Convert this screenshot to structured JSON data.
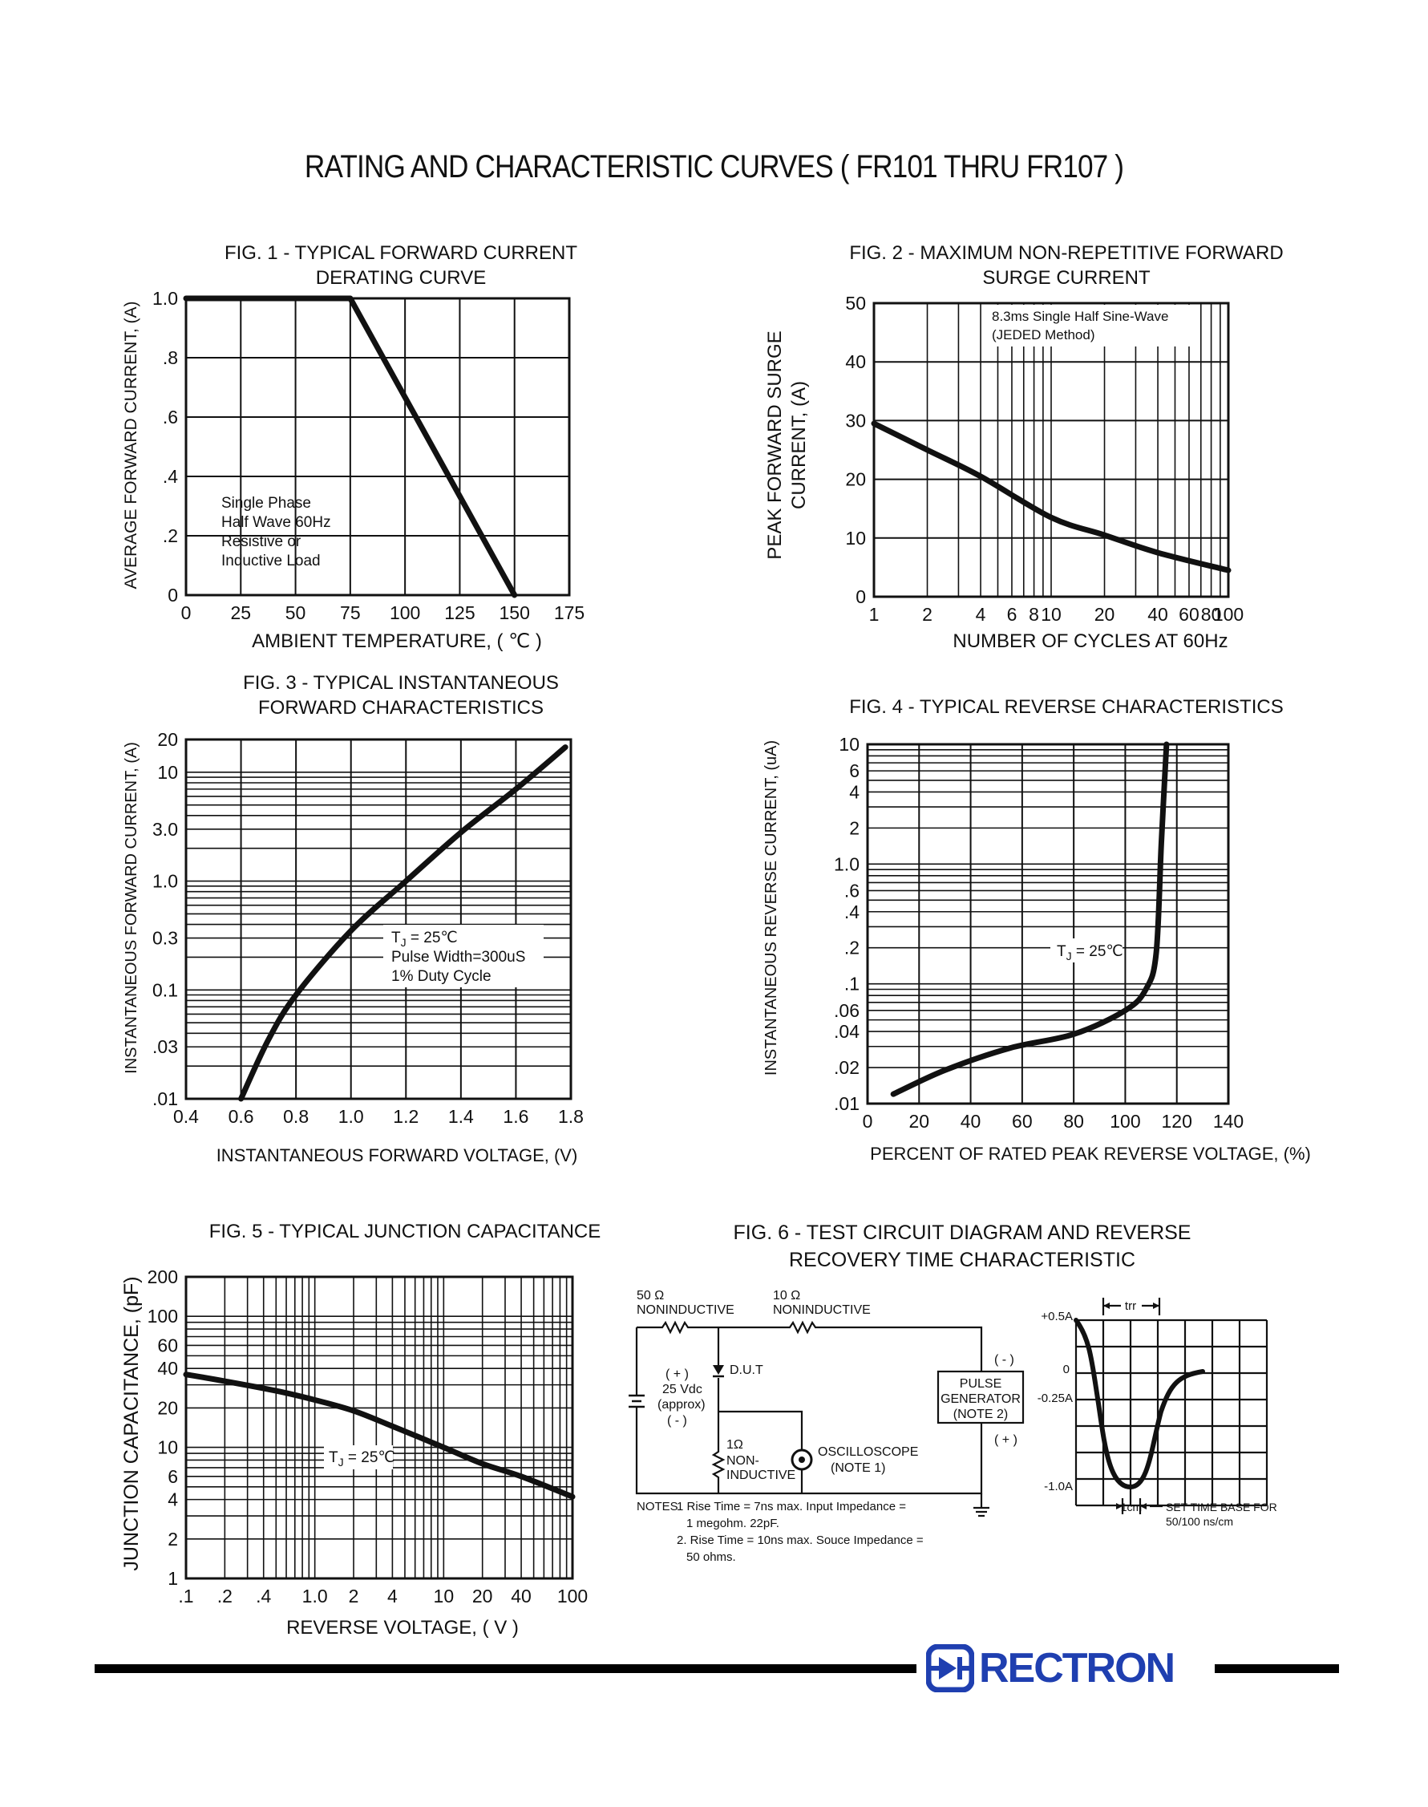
{
  "page": {
    "title": "RATING AND CHARACTERISTIC CURVES ( FR101 THRU FR107 )",
    "brand": "RECTRON",
    "colors": {
      "brand": "#1f3fb0",
      "ink": "#111111"
    }
  },
  "fig1": {
    "title_line1": "FIG. 1 - TYPICAL FORWARD CURRENT",
    "title_line2": "DERATING CURVE",
    "note_lines": [
      "Single Phase",
      "Half Wave 60Hz",
      "Resistive or",
      "Inductive Load"
    ]
  },
  "fig2": {
    "title_line1": "FIG. 2 - MAXIMUM NON-REPETITIVE FORWARD",
    "title_line2": "SURGE CURRENT",
    "note_lines": [
      "8.3ms Single Half Sine-Wave",
      "(JEDED Method)"
    ]
  },
  "fig3": {
    "title_line1": "FIG. 3 - TYPICAL INSTANTANEOUS",
    "title_line2": "FORWARD CHARACTERISTICS",
    "note_lines": [
      "Pulse Width=300uS",
      "1% Duty Cycle"
    ]
  },
  "fig4": {
    "title_line1": "FIG. 4 - TYPICAL REVERSE CHARACTERISTICS"
  },
  "fig5": {
    "title_line1": "FIG. 5 - TYPICAL JUNCTION CAPACITANCE"
  },
  "tj": {
    "prefix": "T",
    "sub": "J",
    "value": " = 25℃"
  },
  "fig6": {
    "title_line1": "FIG. 6 - TEST CIRCUIT DIAGRAM  AND REVERSE",
    "title_line2": "RECOVERY TIME CHARACTERISTIC",
    "r1_value": "50 Ω",
    "r1_label": "NONINDUCTIVE",
    "r2_value": "10 Ω",
    "r2_label": "NONINDUCTIVE",
    "dut": "D.U.T",
    "source_plus": "( + )",
    "source_value": "25 Vdc",
    "source_approx": "(approx)",
    "source_minus": "( - )",
    "r3_value": "1Ω",
    "r3_label1": "NON-",
    "r3_label2": "INDUCTIVE",
    "scope_label": "OSCILLOSCOPE",
    "scope_note": "(NOTE 1)",
    "pulse_minus": "( - )",
    "pulse_plus": "( + )",
    "pulse_line1": "PULSE",
    "pulse_line2": "GENERATOR",
    "pulse_line3": "(NOTE 2)",
    "trr": "trr",
    "wave_labels": [
      "+0.5A",
      "0",
      "-0.25A",
      "-1.0A"
    ],
    "cm": "1cm",
    "timebase_line1": "SET TIME BASE FOR",
    "timebase_line2": "50/100 ns/cm",
    "notes_label": "NOTES",
    "note1_line1": "1  Rise Time = 7ns max. Input Impedance =",
    "note1_line2": "1 megohm. 22pF.",
    "note2_line1": "2. Rise Time = 10ns max. Souce Impedance =",
    "note2_line2": "50 ohms."
  },
  "chart_data": [
    {
      "id": "fig1",
      "type": "line",
      "title": "FIG. 1 - TYPICAL FORWARD CURRENT DERATING CURVE",
      "xlabel": "AMBIENT TEMPERATURE, ( ℃ )",
      "ylabel": "AVERAGE FORWARD CURRENT, (A)",
      "xscale": "linear",
      "yscale": "linear",
      "xlim": [
        0,
        175
      ],
      "ylim": [
        0,
        1.0
      ],
      "xgrid": [
        25,
        50,
        75,
        100,
        125,
        150
      ],
      "ygrid": [
        0.2,
        0.4,
        0.6,
        0.8
      ],
      "xticks": [
        {
          "v": 0,
          "t": "0"
        },
        {
          "v": 25,
          "t": "25"
        },
        {
          "v": 50,
          "t": "50"
        },
        {
          "v": 75,
          "t": "75"
        },
        {
          "v": 100,
          "t": "100"
        },
        {
          "v": 125,
          "t": "125"
        },
        {
          "v": 150,
          "t": "150"
        },
        {
          "v": 175,
          "t": "175"
        }
      ],
      "yticks": [
        {
          "v": 0,
          "t": "0"
        },
        {
          "v": 0.2,
          "t": ".2"
        },
        {
          "v": 0.4,
          "t": ".4"
        },
        {
          "v": 0.6,
          "t": ".6"
        },
        {
          "v": 0.8,
          "t": ".8"
        },
        {
          "v": 1.0,
          "t": "1.0"
        }
      ],
      "series": [
        {
          "name": "derating",
          "x": [
            0,
            75,
            150
          ],
          "y": [
            1.0,
            1.0,
            0
          ]
        }
      ]
    },
    {
      "id": "fig2",
      "type": "line",
      "title": "FIG. 2 - MAXIMUM NON-REPETITIVE FORWARD SURGE CURRENT",
      "xlabel": "NUMBER OF CYCLES AT 60Hz",
      "ylabel": "PEAK FORWARD SURGE CURRENT, (A)",
      "xscale": "log",
      "yscale": "linear",
      "xlim": [
        1,
        100
      ],
      "ylim": [
        0,
        50
      ],
      "xgrid": [
        2,
        3,
        4,
        5,
        6,
        7,
        8,
        9,
        10,
        20,
        30,
        40,
        50,
        60,
        70,
        80,
        90
      ],
      "ygrid": [
        10,
        20,
        30,
        40
      ],
      "xticks": [
        {
          "v": 1,
          "t": "1"
        },
        {
          "v": 2,
          "t": "2"
        },
        {
          "v": 4,
          "t": "4"
        },
        {
          "v": 6,
          "t": "6"
        },
        {
          "v": 8,
          "t": "8"
        },
        {
          "v": 10,
          "t": "10"
        },
        {
          "v": 20,
          "t": "20"
        },
        {
          "v": 40,
          "t": "40"
        },
        {
          "v": 60,
          "t": "60"
        },
        {
          "v": 80,
          "t": "80"
        },
        {
          "v": 100,
          "t": "100"
        }
      ],
      "yticks": [
        {
          "v": 0,
          "t": "0"
        },
        {
          "v": 10,
          "t": "10"
        },
        {
          "v": 20,
          "t": "20"
        },
        {
          "v": 30,
          "t": "30"
        },
        {
          "v": 40,
          "t": "40"
        },
        {
          "v": 50,
          "t": "50"
        }
      ],
      "series": [
        {
          "name": "surge",
          "x": [
            1,
            2,
            4,
            10,
            20,
            40,
            100
          ],
          "y": [
            29.5,
            25,
            20.5,
            13.5,
            10.5,
            7.5,
            4.5
          ]
        }
      ]
    },
    {
      "id": "fig3",
      "type": "line",
      "title": "FIG. 3 - TYPICAL INSTANTANEOUS FORWARD CHARACTERISTICS",
      "xlabel": "INSTANTANEOUS FORWARD VOLTAGE, (V)",
      "ylabel": "INSTANTANEOUS FORWARD CURRENT, (A)",
      "xscale": "linear",
      "yscale": "log",
      "xlim": [
        0.4,
        1.8
      ],
      "ylim": [
        0.01,
        20
      ],
      "xgrid": [
        0.6,
        0.8,
        1.0,
        1.2,
        1.4,
        1.6
      ],
      "ygrid": [
        0.02,
        0.03,
        0.04,
        0.05,
        0.06,
        0.07,
        0.08,
        0.09,
        0.1,
        0.2,
        0.3,
        0.4,
        0.5,
        0.6,
        0.7,
        0.8,
        0.9,
        1,
        2,
        3,
        4,
        5,
        6,
        7,
        8,
        9,
        10
      ],
      "xticks": [
        {
          "v": 0.4,
          "t": "0.4"
        },
        {
          "v": 0.6,
          "t": "0.6"
        },
        {
          "v": 0.8,
          "t": "0.8"
        },
        {
          "v": 1.0,
          "t": "1.0"
        },
        {
          "v": 1.2,
          "t": "1.2"
        },
        {
          "v": 1.4,
          "t": "1.4"
        },
        {
          "v": 1.6,
          "t": "1.6"
        },
        {
          "v": 1.8,
          "t": "1.8"
        }
      ],
      "yticks": [
        {
          "v": 0.01,
          "t": ".01"
        },
        {
          "v": 0.03,
          "t": ".03"
        },
        {
          "v": 0.1,
          "t": "0.1"
        },
        {
          "v": 0.3,
          "t": "0.3"
        },
        {
          "v": 1,
          "t": "1.0"
        },
        {
          "v": 3,
          "t": "3.0"
        },
        {
          "v": 10,
          "t": "10"
        },
        {
          "v": 20,
          "t": "20"
        }
      ],
      "series": [
        {
          "name": "forward",
          "x": [
            0.6,
            0.7,
            0.8,
            1.0,
            1.2,
            1.4,
            1.6,
            1.78
          ],
          "y": [
            0.01,
            0.035,
            0.09,
            0.35,
            1.0,
            2.8,
            7,
            17
          ]
        }
      ]
    },
    {
      "id": "fig4",
      "type": "line",
      "title": "FIG. 4 - TYPICAL REVERSE CHARACTERISTICS",
      "xlabel": "PERCENT OF RATED PEAK REVERSE VOLTAGE, (%)",
      "ylabel": "INSTANTANEOUS REVERSE CURRENT, (uA)",
      "xscale": "linear",
      "yscale": "log",
      "xlim": [
        0,
        140
      ],
      "ylim": [
        0.01,
        10
      ],
      "xgrid": [
        20,
        40,
        60,
        80,
        100,
        120
      ],
      "ygrid": [
        0.02,
        0.03,
        0.04,
        0.05,
        0.06,
        0.07,
        0.08,
        0.09,
        0.1,
        0.2,
        0.3,
        0.4,
        0.5,
        0.6,
        0.7,
        0.8,
        0.9,
        1,
        2,
        3,
        4,
        5,
        6,
        7,
        8,
        9
      ],
      "xticks": [
        {
          "v": 0,
          "t": "0"
        },
        {
          "v": 20,
          "t": "20"
        },
        {
          "v": 40,
          "t": "40"
        },
        {
          "v": 60,
          "t": "60"
        },
        {
          "v": 80,
          "t": "80"
        },
        {
          "v": 100,
          "t": "100"
        },
        {
          "v": 120,
          "t": "120"
        },
        {
          "v": 140,
          "t": "140"
        }
      ],
      "yticks": [
        {
          "v": 0.01,
          "t": ".01"
        },
        {
          "v": 0.02,
          "t": ".02"
        },
        {
          "v": 0.04,
          "t": ".04"
        },
        {
          "v": 0.06,
          "t": ".06"
        },
        {
          "v": 0.1,
          "t": ".1"
        },
        {
          "v": 0.2,
          "t": ".2"
        },
        {
          "v": 0.4,
          "t": ".4"
        },
        {
          "v": 0.6,
          "t": ".6"
        },
        {
          "v": 1,
          "t": "1.0"
        },
        {
          "v": 2,
          "t": "2"
        },
        {
          "v": 4,
          "t": "4"
        },
        {
          "v": 6,
          "t": "6"
        },
        {
          "v": 10,
          "t": "10"
        }
      ],
      "series": [
        {
          "name": "reverse",
          "x": [
            10,
            30,
            55,
            80,
            100,
            108,
            112,
            114,
            116
          ],
          "y": [
            0.012,
            0.019,
            0.029,
            0.038,
            0.06,
            0.09,
            0.18,
            1.5,
            10
          ]
        }
      ]
    },
    {
      "id": "fig5",
      "type": "line",
      "title": "FIG. 5 - TYPICAL JUNCTION CAPACITANCE",
      "xlabel": "REVERSE VOLTAGE, ( V )",
      "ylabel": "JUNCTION CAPACITANCE, (pF)",
      "xscale": "log",
      "yscale": "log",
      "xlim": [
        0.1,
        100
      ],
      "ylim": [
        1,
        200
      ],
      "xgrid": [
        0.2,
        0.3,
        0.4,
        0.5,
        0.6,
        0.7,
        0.8,
        0.9,
        1,
        2,
        3,
        4,
        5,
        6,
        7,
        8,
        9,
        10,
        20,
        30,
        40,
        50,
        60,
        70,
        80,
        90
      ],
      "ygrid": [
        2,
        3,
        4,
        5,
        6,
        7,
        8,
        9,
        10,
        20,
        30,
        40,
        50,
        60,
        70,
        80,
        90,
        100
      ],
      "xticks": [
        {
          "v": 0.1,
          "t": ".1"
        },
        {
          "v": 0.2,
          "t": ".2"
        },
        {
          "v": 0.4,
          "t": ".4"
        },
        {
          "v": 1,
          "t": "1.0"
        },
        {
          "v": 2,
          "t": "2"
        },
        {
          "v": 4,
          "t": "4"
        },
        {
          "v": 10,
          "t": "10"
        },
        {
          "v": 20,
          "t": "20"
        },
        {
          "v": 40,
          "t": "40"
        },
        {
          "v": 100,
          "t": "100"
        }
      ],
      "yticks": [
        {
          "v": 1,
          "t": "1"
        },
        {
          "v": 2,
          "t": "2"
        },
        {
          "v": 4,
          "t": "4"
        },
        {
          "v": 6,
          "t": "6"
        },
        {
          "v": 10,
          "t": "10"
        },
        {
          "v": 20,
          "t": "20"
        },
        {
          "v": 40,
          "t": "40"
        },
        {
          "v": 60,
          "t": "60"
        },
        {
          "v": 100,
          "t": "100"
        },
        {
          "v": 200,
          "t": "200"
        }
      ],
      "series": [
        {
          "name": "capacitance",
          "x": [
            0.1,
            0.2,
            0.5,
            1,
            2,
            4,
            10,
            20,
            40,
            100
          ],
          "y": [
            36,
            32,
            27,
            23,
            19,
            14.5,
            10,
            7.5,
            6,
            4.2
          ]
        }
      ]
    }
  ]
}
